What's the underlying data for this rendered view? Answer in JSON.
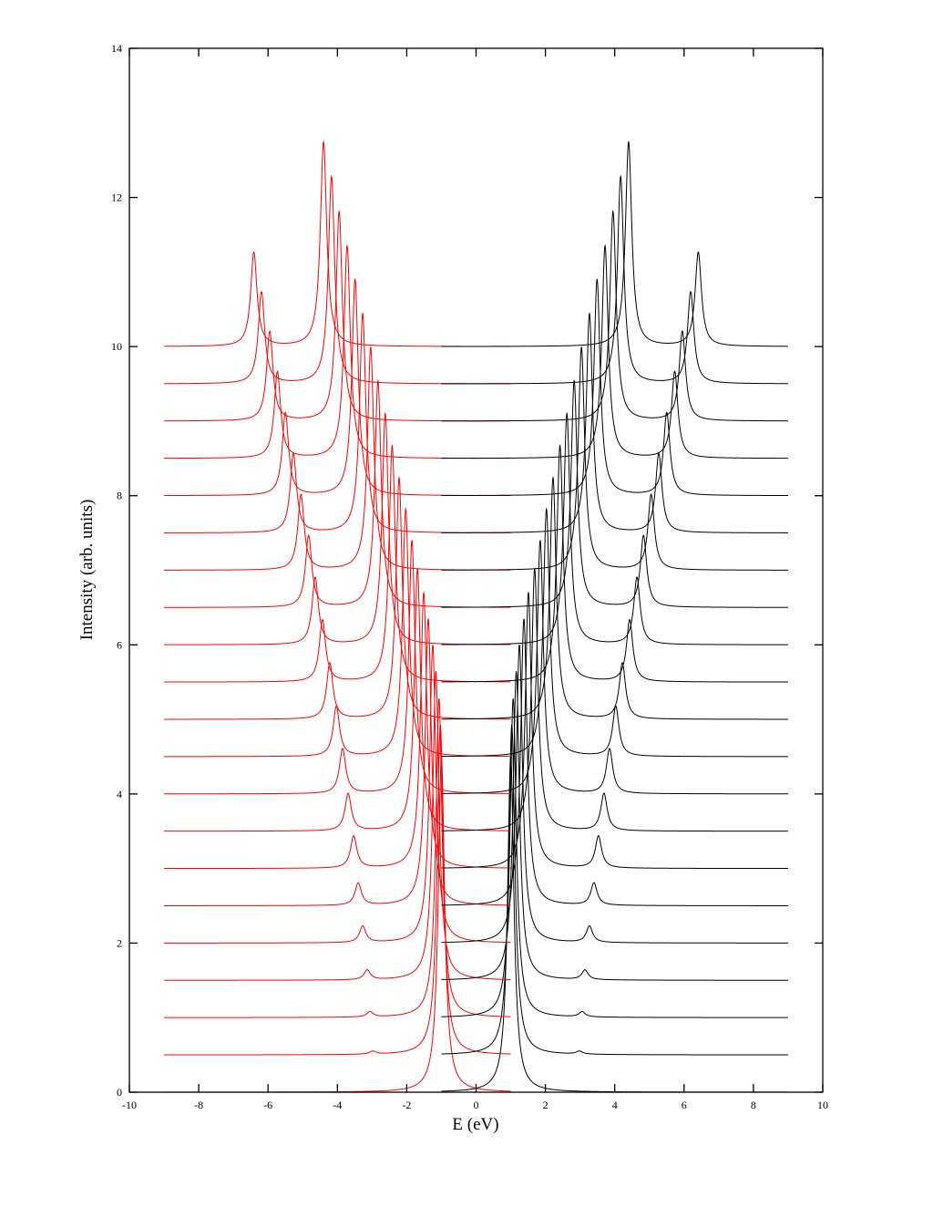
{
  "chart_data": {
    "type": "line",
    "title": "",
    "xlabel": "E (eV)",
    "ylabel": "Intensity (arb. units)",
    "xlim": [
      -10,
      10
    ],
    "ylim": [
      0,
      14
    ],
    "xticks": [
      "-10",
      "-8",
      "-6",
      "-4",
      "-2",
      "0",
      "2",
      "4",
      "6",
      "8",
      "10"
    ],
    "yticks": [
      "0",
      "2",
      "4",
      "6",
      "8",
      "10",
      "12",
      "14"
    ],
    "grid": false,
    "legend": "none",
    "description_of_series": "21 vertically offset spectra (offset step 0.5); each spectrum is a red branch on [-9,1] and a mirrored black branch on [-1,9], each with a strong and a weak Lorentzian peak",
    "offset_step": 0.5,
    "lorentz_hwhm": 0.11,
    "colors": {
      "negative_branch": "#ff0000",
      "positive_branch": "#000000",
      "axes": "#000000"
    },
    "red_range": [
      -9,
      1
    ],
    "black_range": [
      -1,
      9
    ],
    "strong_peak_E": [
      -1.0,
      -1.03,
      -1.07,
      -1.16,
      -1.25,
      -1.38,
      -1.51,
      -1.69,
      -1.85,
      -2.03,
      -2.22,
      -2.42,
      -2.62,
      -2.83,
      -3.04,
      -3.27,
      -3.49,
      -3.72,
      -3.95,
      -4.17,
      -4.4
    ],
    "strong_peak_amp": [
      4.5,
      4.43,
      4.28,
      4.14,
      4.0,
      3.85,
      3.7,
      3.52,
      3.4,
      3.32,
      3.24,
      3.17,
      3.1,
      3.04,
      2.99,
      2.94,
      2.9,
      2.85,
      2.81,
      2.78,
      2.74
    ],
    "weak_peak_E": [
      -3.0,
      -2.98,
      -3.06,
      -3.14,
      -3.27,
      -3.4,
      -3.53,
      -3.69,
      -3.85,
      -4.03,
      -4.22,
      -4.43,
      -4.64,
      -4.83,
      -5.05,
      -5.27,
      -5.5,
      -5.73,
      -5.95,
      -6.19,
      -6.41
    ],
    "weak_peak_amp": [
      0,
      0.04,
      0.07,
      0.13,
      0.22,
      0.3,
      0.43,
      0.5,
      0.6,
      0.67,
      0.75,
      0.83,
      0.9,
      0.96,
      1.01,
      1.06,
      1.11,
      1.16,
      1.2,
      1.23,
      1.26
    ]
  }
}
